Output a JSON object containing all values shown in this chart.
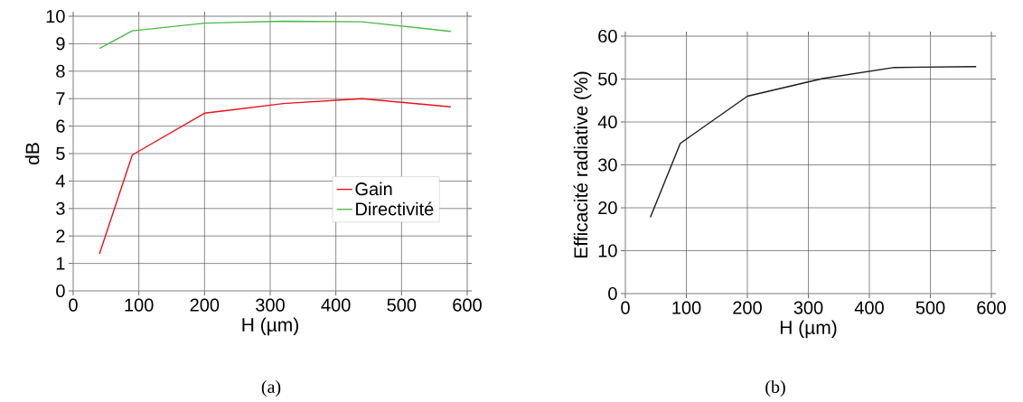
{
  "chart_data": [
    {
      "type": "line",
      "xlabel": "H (µm)",
      "ylabel": "dB",
      "xlim": [
        0,
        600
      ],
      "ylim": [
        0,
        10
      ],
      "xticks": [
        0,
        100,
        200,
        300,
        400,
        500,
        600
      ],
      "yticks": [
        0,
        1,
        2,
        3,
        4,
        5,
        6,
        7,
        8,
        9,
        10
      ],
      "grid": true,
      "legend": "right",
      "marker": "none",
      "line_style": "solid",
      "annotations": [
        "(a)"
      ],
      "series": [
        {
          "name": "Gain",
          "color": "#e8141b",
          "x": [
            40,
            90,
            200,
            320,
            440,
            575
          ],
          "values": [
            1.35,
            4.95,
            6.47,
            6.82,
            7.0,
            6.7
          ]
        },
        {
          "name": "Directivité",
          "color": "#4cb848",
          "x": [
            40,
            90,
            200,
            320,
            440,
            575
          ],
          "values": [
            8.83,
            9.47,
            9.75,
            9.82,
            9.8,
            9.45
          ]
        }
      ]
    },
    {
      "type": "line",
      "xlabel": "H (µm)",
      "ylabel": "Efficacité radiative (%)",
      "xlim": [
        0,
        600
      ],
      "ylim": [
        0,
        60
      ],
      "xticks": [
        0,
        100,
        200,
        300,
        400,
        500,
        600
      ],
      "yticks": [
        0,
        10,
        20,
        30,
        40,
        50,
        60
      ],
      "grid": true,
      "marker": "none",
      "line_style": "solid",
      "annotations": [
        "(b)"
      ],
      "series": [
        {
          "color": "#1a1a1a",
          "x": [
            41,
            90,
            200,
            323,
            441,
            575
          ],
          "values": [
            17.8,
            35,
            46,
            50.1,
            52.7,
            52.9
          ]
        }
      ]
    }
  ]
}
